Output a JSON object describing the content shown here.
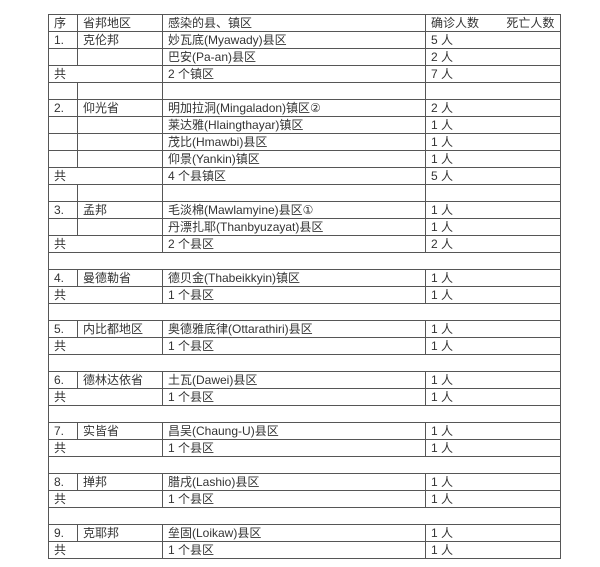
{
  "colors": {
    "background": "#ffffff",
    "text": "#333333",
    "border": "#565656"
  },
  "table": {
    "header": {
      "seq": "序",
      "region": "省邦地区",
      "place": "感染的县、镇区",
      "confirmed": "确诊人数",
      "deaths": "死亡人数"
    },
    "total_label": "共",
    "rows": [
      {
        "type": "data",
        "seq": "1.",
        "region": "克伦邦",
        "place": "妙瓦底(Myawady)县区",
        "confirmed": "5 人"
      },
      {
        "type": "data",
        "seq": "",
        "region": "",
        "place": "巴安(Pa-an)县区",
        "confirmed": "2 人"
      },
      {
        "type": "total",
        "label": "共",
        "place": "2 个镇区",
        "confirmed": "7 人"
      },
      {
        "type": "empty"
      },
      {
        "type": "data",
        "seq": "2.",
        "region": "仰光省",
        "place": "明加拉洞(Mingaladon)镇区②",
        "confirmed": "2 人"
      },
      {
        "type": "data",
        "seq": "",
        "region": "",
        "place": "莱达雅(Hlaingthayar)镇区",
        "confirmed": "1 人"
      },
      {
        "type": "data",
        "seq": "",
        "region": "",
        "place": "茂比(Hmawbi)县区",
        "confirmed": "1 人"
      },
      {
        "type": "data",
        "seq": "",
        "region": "",
        "place": "仰景(Yankin)镇区",
        "confirmed": "1 人"
      },
      {
        "type": "total",
        "label": "共",
        "place": "4 个县镇区",
        "confirmed": "5 人"
      },
      {
        "type": "empty"
      },
      {
        "type": "data",
        "seq": "3.",
        "region": "孟邦",
        "place": "毛淡棉(Mawlamyine)县区①",
        "confirmed": "1 人"
      },
      {
        "type": "data",
        "seq": "",
        "region": "",
        "place": "丹漂扎耶(Thanbyuzayat)县区",
        "confirmed": "1 人"
      },
      {
        "type": "total",
        "label": "共",
        "place": "2 个县区",
        "confirmed": "2 人"
      },
      {
        "type": "empty-merged"
      },
      {
        "type": "data",
        "seq": "4.",
        "region": "曼德勒省",
        "place": "德贝金(Thabeikkyin)镇区",
        "confirmed": "1 人"
      },
      {
        "type": "total",
        "label": "共",
        "place": "1 个县区",
        "confirmed": "1 人"
      },
      {
        "type": "empty-merged"
      },
      {
        "type": "data",
        "seq": "5.",
        "region": "内比都地区",
        "place": "奥德雅底律(Ottarathiri)县区",
        "confirmed": "1 人"
      },
      {
        "type": "total",
        "label": "共",
        "place": "1 个县区",
        "confirmed": "1 人"
      },
      {
        "type": "empty-merged"
      },
      {
        "type": "data",
        "seq": "6.",
        "region": "德林达依省",
        "place": "土瓦(Dawei)县区",
        "confirmed": "1 人"
      },
      {
        "type": "total",
        "label": "共",
        "place": "1 个县区",
        "confirmed": "1 人"
      },
      {
        "type": "empty-merged"
      },
      {
        "type": "data",
        "seq": "7.",
        "region": "实皆省",
        "place": "昌吴(Chaung-U)县区",
        "confirmed": "1 人"
      },
      {
        "type": "total",
        "label": "共",
        "place": "1 个县区",
        "confirmed": "1 人"
      },
      {
        "type": "empty-merged"
      },
      {
        "type": "data",
        "seq": "8.",
        "region": "掸邦",
        "place": "腊戌(Lashio)县区",
        "confirmed": "1 人"
      },
      {
        "type": "total",
        "label": "共",
        "place": "1 个县区",
        "confirmed": "1 人"
      },
      {
        "type": "empty-merged"
      },
      {
        "type": "data",
        "seq": "9.",
        "region": "克耶邦",
        "place": "垒固(Loikaw)县区",
        "confirmed": "1 人"
      },
      {
        "type": "total",
        "label": "共",
        "place": "1 个县区",
        "confirmed": "1 人"
      }
    ]
  }
}
